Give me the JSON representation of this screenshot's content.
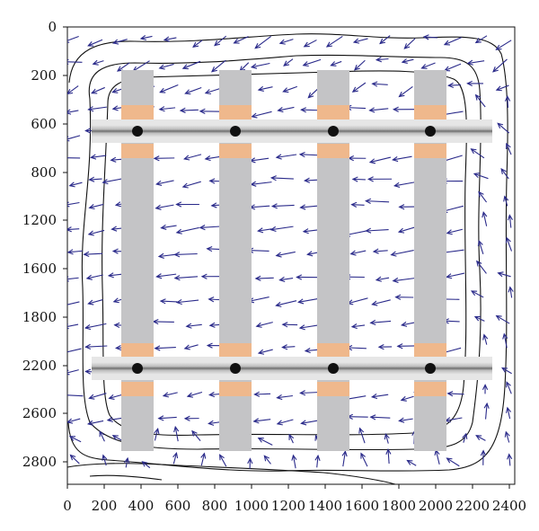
{
  "axes": {
    "x_ticks": [
      "0",
      "200",
      "400",
      "600",
      "800",
      "1000",
      "1200",
      "1400",
      "1600",
      "1800",
      "2000",
      "2200",
      "2400"
    ],
    "y_ticks": [
      "0",
      "200",
      "600",
      "800",
      "1200",
      "1600",
      "1800",
      "2200",
      "2600",
      "2800"
    ],
    "x_range": [
      0,
      2470
    ],
    "y_range": [
      0,
      2950
    ],
    "y_inverted": true,
    "grid": false
  },
  "diagram": {
    "colors": {
      "vector": "#2a2a8a",
      "sleeper": "#c4c4c6",
      "pad": "#efb88c",
      "rail_light": "#e6e6e6",
      "rail_dark": "#8a8a8a",
      "fastener": "#111111",
      "contour": "#111111"
    },
    "sleepers_x": [
      290,
      880,
      1485,
      2090
    ],
    "rails_y": [
      680,
      2245
    ],
    "sleeper_count": 4,
    "rail_count": 2
  }
}
